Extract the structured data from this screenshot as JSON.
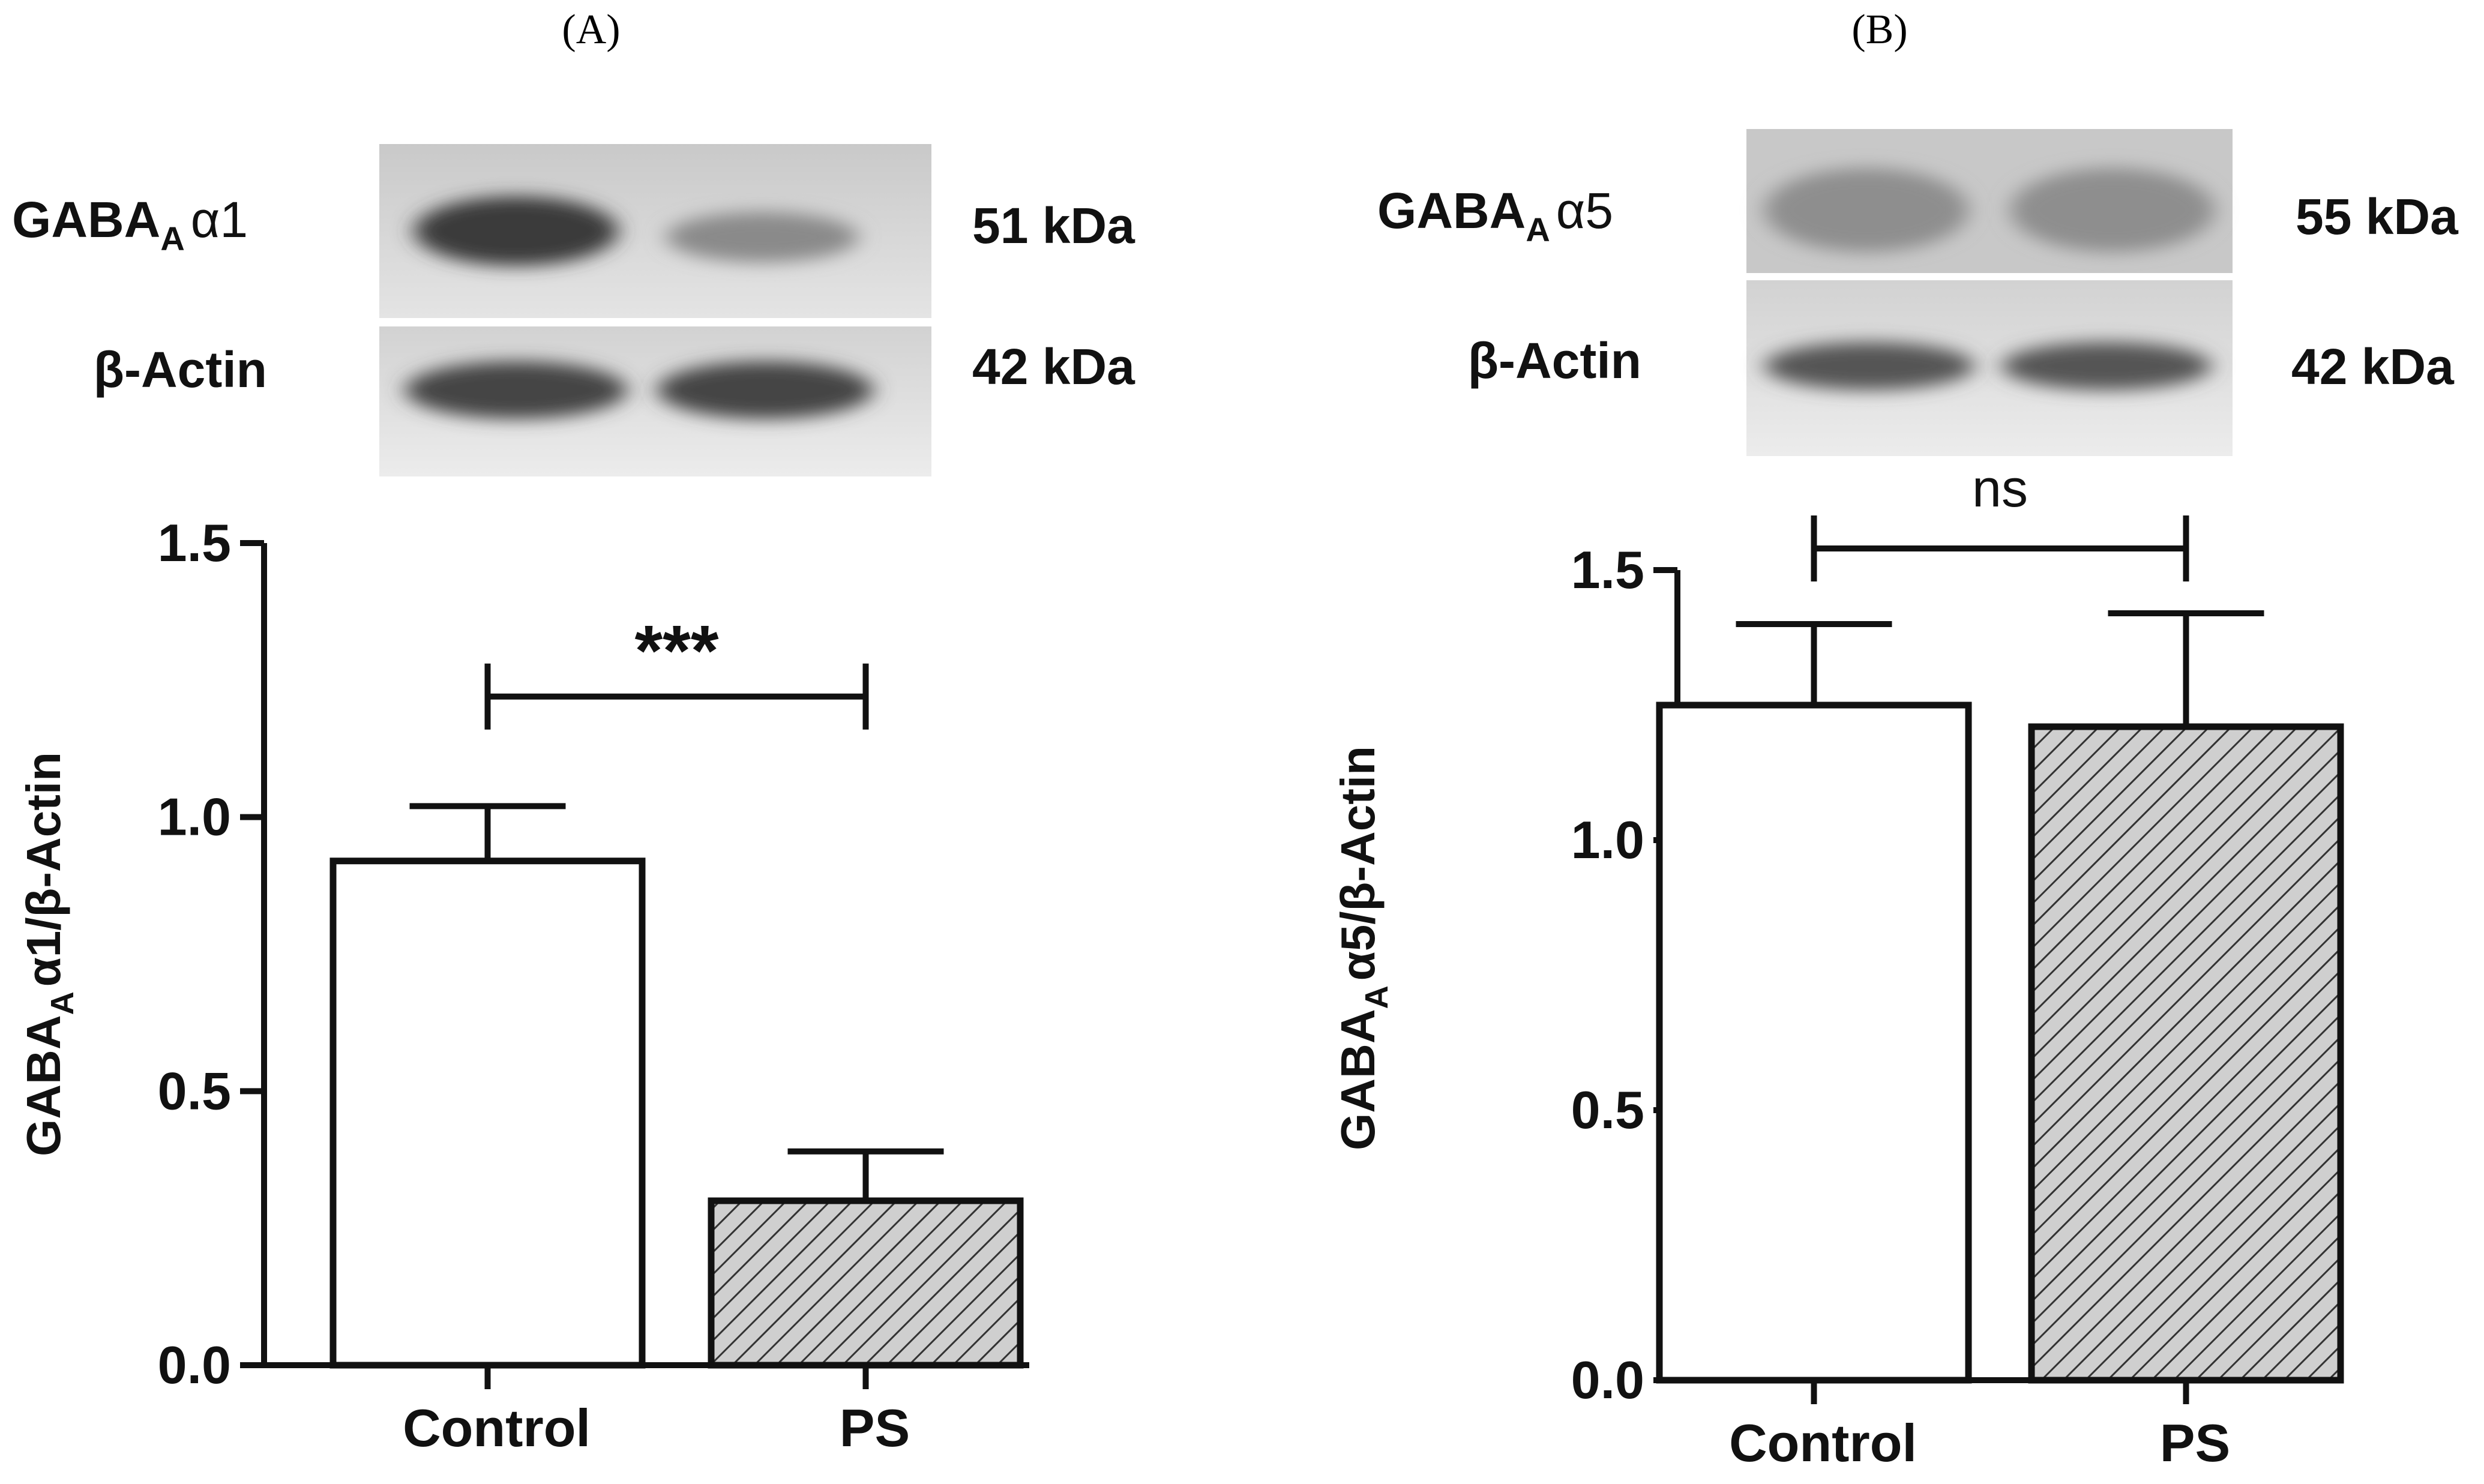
{
  "chart_data": [
    {
      "type": "bar",
      "panel": "(A)",
      "blot": {
        "target": "GABAA α1",
        "target_base": "GABA",
        "target_sub": "A",
        "target_greek": "α1",
        "target_size": "51 kDa",
        "control": "β-Actin",
        "control_size": "42 kDa"
      },
      "categories": [
        "Control",
        "PS"
      ],
      "values": [
        0.92,
        0.3
      ],
      "errors": [
        0.1,
        0.09
      ],
      "patterns": [
        "none",
        "hatched"
      ],
      "ylabel": "GABAA α1/β-Actin",
      "ylabel_base": "GABA",
      "ylabel_sub": "A",
      "ylabel_rest": "α1/β-Actin",
      "ylim": [
        0,
        1.5
      ],
      "yticks": [
        "0.0",
        "0.5",
        "1.0",
        "1.5"
      ],
      "significance": {
        "label": "***",
        "between": [
          "Control",
          "PS"
        ],
        "level": 1.22
      }
    },
    {
      "type": "bar",
      "panel": "(B)",
      "blot": {
        "target": "GABAA α5",
        "target_base": "GABA",
        "target_sub": "A",
        "target_greek": "α5",
        "target_size": "55 kDa",
        "control": "β-Actin",
        "control_size": "42 kDa"
      },
      "categories": [
        "Control",
        "PS"
      ],
      "values": [
        1.25,
        1.21
      ],
      "errors": [
        0.15,
        0.21
      ],
      "patterns": [
        "none",
        "hatched"
      ],
      "ylabel": "GABAA α5/β-Actin",
      "ylabel_base": "GABA",
      "ylabel_sub": "A",
      "ylabel_rest": "α5/β-Actin",
      "ylim": [
        0,
        1.5
      ],
      "yticks": [
        "0.0",
        "0.5",
        "1.0",
        "1.5"
      ],
      "significance": {
        "label": "ns",
        "between": [
          "Control",
          "PS"
        ],
        "level": 1.54
      }
    }
  ]
}
